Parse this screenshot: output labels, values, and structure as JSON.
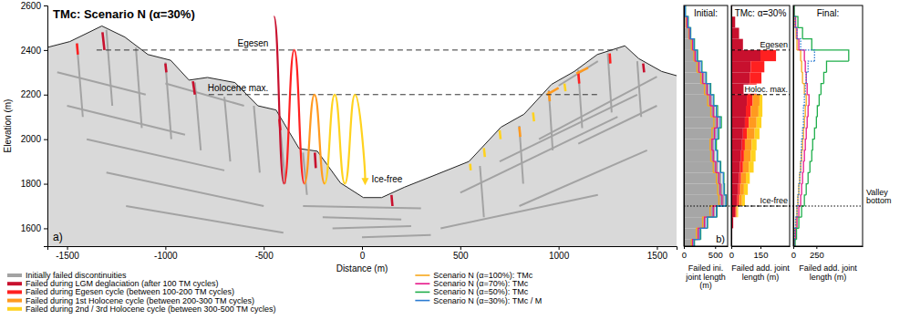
{
  "chart_data": [
    {
      "type": "cross_section",
      "title": "TMc: Scenario N (α=30%)",
      "panel": "a)",
      "x_label": "Distance (m)",
      "y_label": "Elevation (m)",
      "xlim": [
        -1600,
        1600
      ],
      "xticks": [
        -1500,
        -1000,
        -500,
        0,
        500,
        1000,
        1500
      ],
      "ylim": [
        1520,
        2600
      ],
      "yticks": [
        1600,
        1800,
        2000,
        2200,
        2400,
        2600
      ],
      "legend": "bottom",
      "topography": {
        "x": [
          -1600,
          -1486,
          -1323,
          -1206,
          -1089,
          -973,
          -880,
          -786,
          -646,
          -530,
          -437,
          -320,
          -227,
          -110,
          7,
          100,
          217,
          380,
          544,
          707,
          824,
          964,
          1080,
          1197,
          1337,
          1407,
          1524,
          1600
        ],
        "y": [
          2412,
          2438,
          2508,
          2458,
          2380,
          2354,
          2265,
          2277,
          2254,
          2150,
          2131,
          1958,
          1946,
          1804,
          1738,
          1738,
          1785,
          1842,
          1900,
          2054,
          2112,
          2246,
          2304,
          2380,
          2419,
          2362,
          2304,
          2285
        ]
      },
      "annotations": [
        {
          "text": "Egesen",
          "y": 2400,
          "x": [
            -1350,
            1300
          ]
        },
        {
          "text": "Holocene max.",
          "y": 2200,
          "x": [
            -780,
            1200
          ]
        },
        {
          "text": "Ice-free"
        }
      ],
      "series": [
        {
          "name": "Initially failed discontinuities",
          "color": "#a3a3a3",
          "segments": [
            [
              -1450,
              2430,
              -1420,
              2100
            ],
            [
              -1300,
              2490,
              -1270,
              2150
            ],
            [
              -1150,
              2410,
              -1120,
              2050
            ],
            [
              -1000,
              2345,
              -970,
              2000
            ],
            [
              -850,
              2255,
              -820,
              1950
            ],
            [
              -700,
              2190,
              -670,
              1900
            ],
            [
              -550,
              2150,
              -520,
              1850
            ],
            [
              -420,
              2090,
              -390,
              1800
            ],
            [
              -300,
              1940,
              -280,
              1750
            ],
            [
              -1550,
              2300,
              -1100,
              2200
            ],
            [
              -1500,
              2150,
              -900,
              2020
            ],
            [
              -1400,
              2000,
              -700,
              1860
            ],
            [
              -1300,
              1850,
              -500,
              1700
            ],
            [
              -1200,
              1700,
              -400,
              1580
            ],
            [
              -1000,
              2250,
              -600,
              2150
            ],
            [
              -200,
              1650,
              200,
              1640
            ],
            [
              -150,
              1600,
              250,
              1610
            ],
            [
              -300,
              1700,
              300,
              1690
            ],
            [
              0,
              1560,
              350,
              1570
            ],
            [
              1500,
              2280,
              900,
              2000
            ],
            [
              1400,
              2200,
              700,
              1900
            ],
            [
              1300,
              2100,
              500,
              1760
            ],
            [
              1200,
              2350,
              1000,
              2240
            ],
            [
              1500,
              2150,
              1100,
              1980
            ],
            [
              1450,
              1950,
              800,
              1700
            ],
            [
              1200,
              1750,
              400,
              1600
            ],
            [
              600,
              1880,
              620,
              1650
            ],
            [
              800,
              2060,
              820,
              1800
            ],
            [
              950,
              2220,
              970,
              1950
            ],
            [
              1100,
              2310,
              1120,
              2050
            ],
            [
              1250,
              2385,
              1270,
              2120
            ],
            [
              1400,
              2350,
              1420,
              2100
            ]
          ]
        },
        {
          "name": "Failed during LGM deglaciation (after 100 TM cycles)",
          "color": "#c8102e",
          "segments": [
            [
              -1320,
              2480,
              -1310,
              2400
            ],
            [
              -860,
              2260,
              -850,
              2200
            ],
            [
              -1000,
              2340,
              -995,
              2300
            ],
            [
              150,
              1750,
              155,
              1700
            ],
            [
              -240,
              1940,
              -235,
              1870
            ],
            [
              1430,
              2340,
              1435,
              2300
            ]
          ]
        },
        {
          "name": "Failed during Egesen cycle (between 100-200 TM cycles)",
          "color": "#ff2020",
          "segments": [
            [
              1100,
              2300,
              1105,
              2250
            ],
            [
              1260,
              2385,
              1263,
              2340
            ],
            [
              -1450,
              2430,
              -1445,
              2380
            ],
            [
              -420,
              2090,
              -415,
              2040
            ]
          ]
        },
        {
          "name": "Failed during 1st Holocene cycle (between 200-300 TM cycles)",
          "color": "#ff9a1f",
          "segments": [
            [
              950,
              2215,
              955,
              2170
            ],
            [
              1000,
              2230,
              940,
              2200
            ],
            [
              800,
              2055,
              805,
              2010
            ],
            [
              1150,
              2320,
              1090,
              2295
            ]
          ]
        },
        {
          "name": "Failed during 2nd / 3rd Holocene cycle (between 300-500 TM cycles)",
          "color": "#ffd21f",
          "segments": [
            [
              700,
              2040,
              705,
              2000
            ],
            [
              620,
              1960,
              625,
              1920
            ],
            [
              870,
              2120,
              875,
              2080
            ],
            [
              1030,
              2250,
              1035,
              2215
            ],
            [
              550,
              1890,
              553,
              1860
            ]
          ]
        }
      ]
    },
    {
      "type": "step",
      "title": "Initial:",
      "panel": "b)",
      "x_label": "Failed ini. joint length (m)",
      "orientation": "horizontal",
      "tick_labels": "x",
      "legend": "bottom",
      "xlim": [
        0,
        700
      ],
      "xticks": [
        0,
        500
      ],
      "ylim": [
        1520,
        2600
      ],
      "bins": [
        1500,
        1550,
        1600,
        1650,
        1700,
        1750,
        1800,
        1850,
        1900,
        1950,
        2000,
        2050,
        2100,
        2150,
        2200,
        2250,
        2300,
        2350,
        2400,
        2450,
        2500,
        2550,
        2600
      ],
      "series": [
        {
          "type": "bar",
          "color": "#a6a6a6",
          "values": [
            150,
            250,
            350,
            500,
            650,
            620,
            600,
            550,
            500,
            480,
            520,
            560,
            500,
            450,
            400,
            330,
            260,
            200,
            150,
            100,
            60,
            20
          ]
        },
        {
          "name": "Scenario N (α=100%): TMc",
          "color": "#f7a81b",
          "values": [
            120,
            200,
            300,
            420,
            560,
            540,
            520,
            470,
            430,
            420,
            450,
            480,
            430,
            380,
            330,
            270,
            210,
            160,
            120,
            80,
            40,
            15
          ]
        },
        {
          "name": "Scenario N (α=70%): TMc",
          "color": "#e6198a",
          "values": [
            140,
            230,
            330,
            470,
            610,
            580,
            560,
            510,
            470,
            450,
            490,
            530,
            470,
            420,
            370,
            300,
            240,
            180,
            140,
            90,
            50,
            18
          ]
        },
        {
          "name": "Scenario N (α=50%): TMc",
          "color": "#1fae4b",
          "values": [
            170,
            270,
            380,
            530,
            680,
            650,
            640,
            590,
            540,
            520,
            560,
            600,
            540,
            480,
            430,
            360,
            290,
            220,
            170,
            110,
            70,
            25
          ]
        },
        {
          "name": "Scenario N (α=30%): TMc / M",
          "color": "#2b7bd1",
          "values": [
            160,
            260,
            370,
            520,
            670,
            640,
            630,
            580,
            530,
            500,
            540,
            580,
            520,
            470,
            420,
            350,
            280,
            210,
            160,
            105,
            65,
            22
          ]
        }
      ]
    },
    {
      "type": "bar",
      "stacked": true,
      "title": "TMc: α=30%",
      "x_label": "Failed add. joint length (m)",
      "orientation": "horizontal",
      "tick_labels": "x",
      "xlim": [
        0,
        300
      ],
      "xticks": [
        0,
        150
      ],
      "ylim": [
        1520,
        2600
      ],
      "bins": [
        1500,
        1550,
        1600,
        1650,
        1700,
        1750,
        1800,
        1850,
        1900,
        1950,
        2000,
        2050,
        2100,
        2150,
        2200,
        2250,
        2300,
        2350,
        2400,
        2450,
        2500,
        2550,
        2600
      ],
      "annotations": [
        {
          "text": "Egesen",
          "y": 2400
        },
        {
          "text": "Holoc. max.",
          "y": 2200
        },
        {
          "text": "Ice-free",
          "y": 1700
        }
      ],
      "series": [
        {
          "color": "#c8102e",
          "values": [
            0,
            5,
            10,
            20,
            30,
            35,
            40,
            45,
            50,
            55,
            60,
            70,
            75,
            80,
            90,
            95,
            100,
            150,
            60,
            40,
            20,
            5
          ]
        },
        {
          "color": "#ff2020",
          "values": [
            0,
            0,
            0,
            5,
            10,
            10,
            10,
            15,
            15,
            15,
            20,
            20,
            25,
            30,
            40,
            60,
            70,
            80,
            0,
            0,
            0,
            0
          ]
        },
        {
          "color": "#ff9a1f",
          "values": [
            0,
            0,
            0,
            5,
            15,
            20,
            25,
            30,
            35,
            35,
            40,
            40,
            40,
            35,
            0,
            0,
            0,
            0,
            0,
            0,
            0,
            0
          ]
        },
        {
          "color": "#ffd21f",
          "values": [
            0,
            0,
            0,
            5,
            15,
            20,
            20,
            25,
            25,
            25,
            25,
            25,
            20,
            15,
            0,
            0,
            0,
            0,
            0,
            0,
            0,
            0
          ]
        }
      ]
    },
    {
      "type": "step",
      "title": "Final:",
      "x_label": "Failed add. joint length (m)",
      "orientation": "horizontal",
      "tick_labels": "x",
      "xlim": [
        0,
        750
      ],
      "xticks": [
        0,
        250
      ],
      "ylim": [
        1520,
        2600
      ],
      "bins": [
        1500,
        1550,
        1600,
        1650,
        1700,
        1750,
        1800,
        1850,
        1900,
        1950,
        2000,
        2050,
        2100,
        2150,
        2200,
        2250,
        2300,
        2350,
        2400,
        2450,
        2500,
        2550,
        2600
      ],
      "annotations": [
        {
          "text": "Valley bottom",
          "y": 1700
        }
      ],
      "series": [
        {
          "color": "#f7a81b",
          "values": [
            10,
            20,
            30,
            40,
            50,
            60,
            70,
            80,
            90,
            100,
            110,
            120,
            130,
            140,
            120,
            100,
            90,
            80,
            40,
            30,
            20,
            5
          ]
        },
        {
          "color": "#e6198a",
          "values": [
            15,
            25,
            40,
            60,
            80,
            90,
            100,
            110,
            120,
            130,
            140,
            150,
            160,
            170,
            150,
            140,
            130,
            120,
            60,
            40,
            25,
            8
          ]
        },
        {
          "color": "#1fae4b",
          "values": [
            20,
            35,
            60,
            90,
            120,
            140,
            160,
            180,
            200,
            210,
            230,
            250,
            260,
            280,
            300,
            330,
            360,
            600,
            200,
            100,
            50,
            10
          ]
        },
        {
          "color": "#2b7bd1",
          "line_style": "dotted",
          "values": [
            10,
            15,
            25,
            40,
            50,
            60,
            70,
            80,
            85,
            90,
            100,
            110,
            110,
            120,
            130,
            140,
            160,
            230,
            80,
            40,
            20,
            5
          ]
        }
      ]
    }
  ]
}
